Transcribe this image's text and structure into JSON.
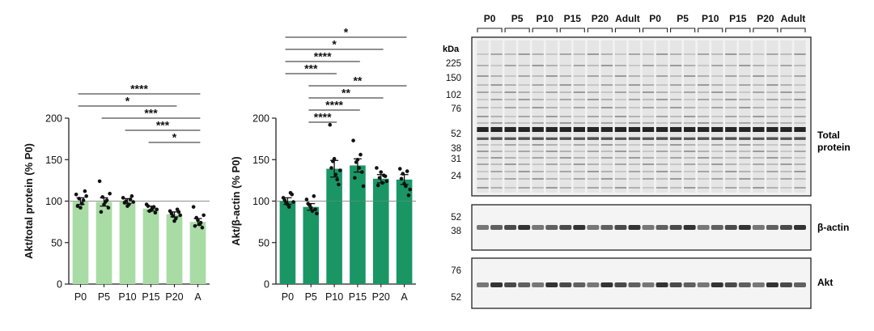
{
  "chart_data": [
    {
      "type": "bar",
      "title": "",
      "ylabel": "Akt/total protein (% P0)",
      "xlabel": "",
      "categories": [
        "P0",
        "P5",
        "P10",
        "P15",
        "P20",
        "A"
      ],
      "values": [
        100,
        99,
        100,
        91,
        84,
        75
      ],
      "errors": [
        4,
        5,
        3,
        3,
        3,
        4
      ],
      "ylim": [
        0,
        200
      ],
      "yticks": [
        "0",
        "50",
        "100",
        "150",
        "200"
      ],
      "reference_line": 100,
      "color": "#a8dca4",
      "points": [
        [
          108,
          103,
          97,
          112,
          94,
          92,
          101,
          106
        ],
        [
          124,
          105,
          99,
          92,
          87,
          96,
          101,
          109
        ],
        [
          104,
          100,
          96,
          106,
          98,
          94,
          102,
          99
        ],
        [
          96,
          88,
          91,
          86,
          94,
          89,
          93,
          90
        ],
        [
          88,
          82,
          79,
          87,
          85,
          76,
          90,
          83
        ],
        [
          93,
          80,
          72,
          68,
          70,
          77,
          74,
          83
        ]
      ],
      "significance": [
        {
          "from": 0,
          "to": 5,
          "label": "****"
        },
        {
          "from": 0,
          "to": 4,
          "label": "*"
        },
        {
          "from": 1,
          "to": 5,
          "label": "***"
        },
        {
          "from": 2,
          "to": 5,
          "label": "***"
        },
        {
          "from": 3,
          "to": 5,
          "label": "*"
        }
      ]
    },
    {
      "type": "bar",
      "title": "",
      "ylabel": "Akt/β-actin (% P0)",
      "xlabel": "",
      "categories": [
        "P0",
        "P5",
        "P10",
        "P15",
        "P20",
        "A"
      ],
      "values": [
        100,
        93,
        139,
        143,
        127,
        126
      ],
      "errors": [
        4,
        4,
        10,
        8,
        5,
        6
      ],
      "ylim": [
        0,
        200
      ],
      "yticks": [
        "0",
        "50",
        "100",
        "150",
        "200"
      ],
      "reference_line": 100,
      "color": "#1a9665",
      "points": [
        [
          104,
          98,
          93,
          108,
          101,
          96,
          110,
          99
        ],
        [
          102,
          95,
          88,
          90,
          97,
          92,
          106,
          85
        ],
        [
          192,
          148,
          132,
          120,
          140,
          151,
          126,
          137
        ],
        [
          173,
          147,
          140,
          135,
          128,
          150,
          156,
          118
        ],
        [
          140,
          128,
          122,
          130,
          119,
          135,
          131,
          124
        ],
        [
          139,
          133,
          118,
          107,
          127,
          121,
          136,
          114
        ]
      ],
      "significance": [
        {
          "from": 0,
          "to": 5,
          "label": "*"
        },
        {
          "from": 0,
          "to": 4,
          "label": "*"
        },
        {
          "from": 0,
          "to": 3,
          "label": "****"
        },
        {
          "from": 0,
          "to": 2,
          "label": "***"
        },
        {
          "from": 1,
          "to": 5,
          "label": "**"
        },
        {
          "from": 1,
          "to": 4,
          "label": "**"
        },
        {
          "from": 1,
          "to": 3,
          "label": "****"
        },
        {
          "from": 1,
          "to": 2,
          "label": "****"
        }
      ]
    }
  ],
  "blot": {
    "lane_groups": [
      "P0",
      "P5",
      "P10",
      "P15",
      "P20",
      "Adult",
      "P0",
      "P5",
      "P10",
      "P15",
      "P20",
      "Adult"
    ],
    "panels": [
      {
        "label": "Total\nprotein",
        "label_lines": [
          "Total",
          "protein"
        ],
        "unit": "kDa",
        "markers": [
          "225",
          "150",
          "102",
          "76",
          "52",
          "38",
          "31",
          "24"
        ]
      },
      {
        "label": "β-actin",
        "markers": [
          "52",
          "38"
        ]
      },
      {
        "label": "Akt",
        "markers": [
          "76",
          "52"
        ]
      }
    ]
  }
}
